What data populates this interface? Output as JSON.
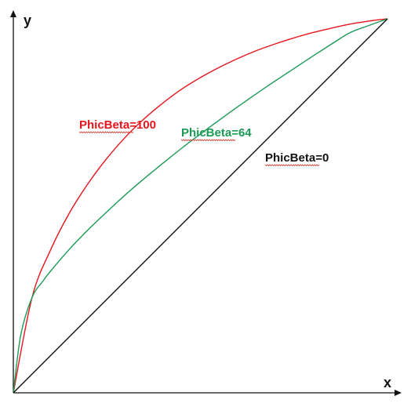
{
  "chart_data": {
    "type": "line",
    "xlabel": "x",
    "ylabel": "y",
    "xlim": [
      0,
      1
    ],
    "ylim": [
      0,
      1
    ],
    "grid": false,
    "legend": "none",
    "series": [
      {
        "name": "PhicBeta=100",
        "color": "#e8141c",
        "x": [
          0,
          0.05,
          0.1,
          0.15,
          0.2,
          0.25,
          0.3,
          0.35,
          0.4,
          0.45,
          0.5,
          0.55,
          0.6,
          0.65,
          0.7,
          0.75,
          0.8,
          0.85,
          0.9,
          0.95,
          1.0
        ],
        "y": [
          0,
          0.255,
          0.383,
          0.481,
          0.56,
          0.627,
          0.684,
          0.733,
          0.775,
          0.812,
          0.843,
          0.87,
          0.894,
          0.915,
          0.933,
          0.949,
          0.963,
          0.975,
          0.986,
          0.994,
          1.0
        ]
      },
      {
        "name": "PhicBeta=64",
        "color": "#1a9a55",
        "x": [
          0,
          0.02,
          0.05,
          0.08,
          0.1,
          0.15,
          0.2,
          0.25,
          0.3,
          0.35,
          0.4,
          0.45,
          0.5,
          0.55,
          0.6,
          0.65,
          0.7,
          0.75,
          0.8,
          0.85,
          0.9,
          0.95,
          1.0
        ],
        "y": [
          0,
          0.155,
          0.255,
          0.3,
          0.326,
          0.384,
          0.436,
          0.484,
          0.53,
          0.573,
          0.614,
          0.654,
          0.692,
          0.729,
          0.765,
          0.8,
          0.834,
          0.867,
          0.9,
          0.932,
          0.963,
          0.982,
          1.0
        ]
      },
      {
        "name": "PhicBeta=0",
        "color": "#111111",
        "x": [
          0,
          1
        ],
        "y": [
          0,
          1
        ]
      }
    ]
  }
}
